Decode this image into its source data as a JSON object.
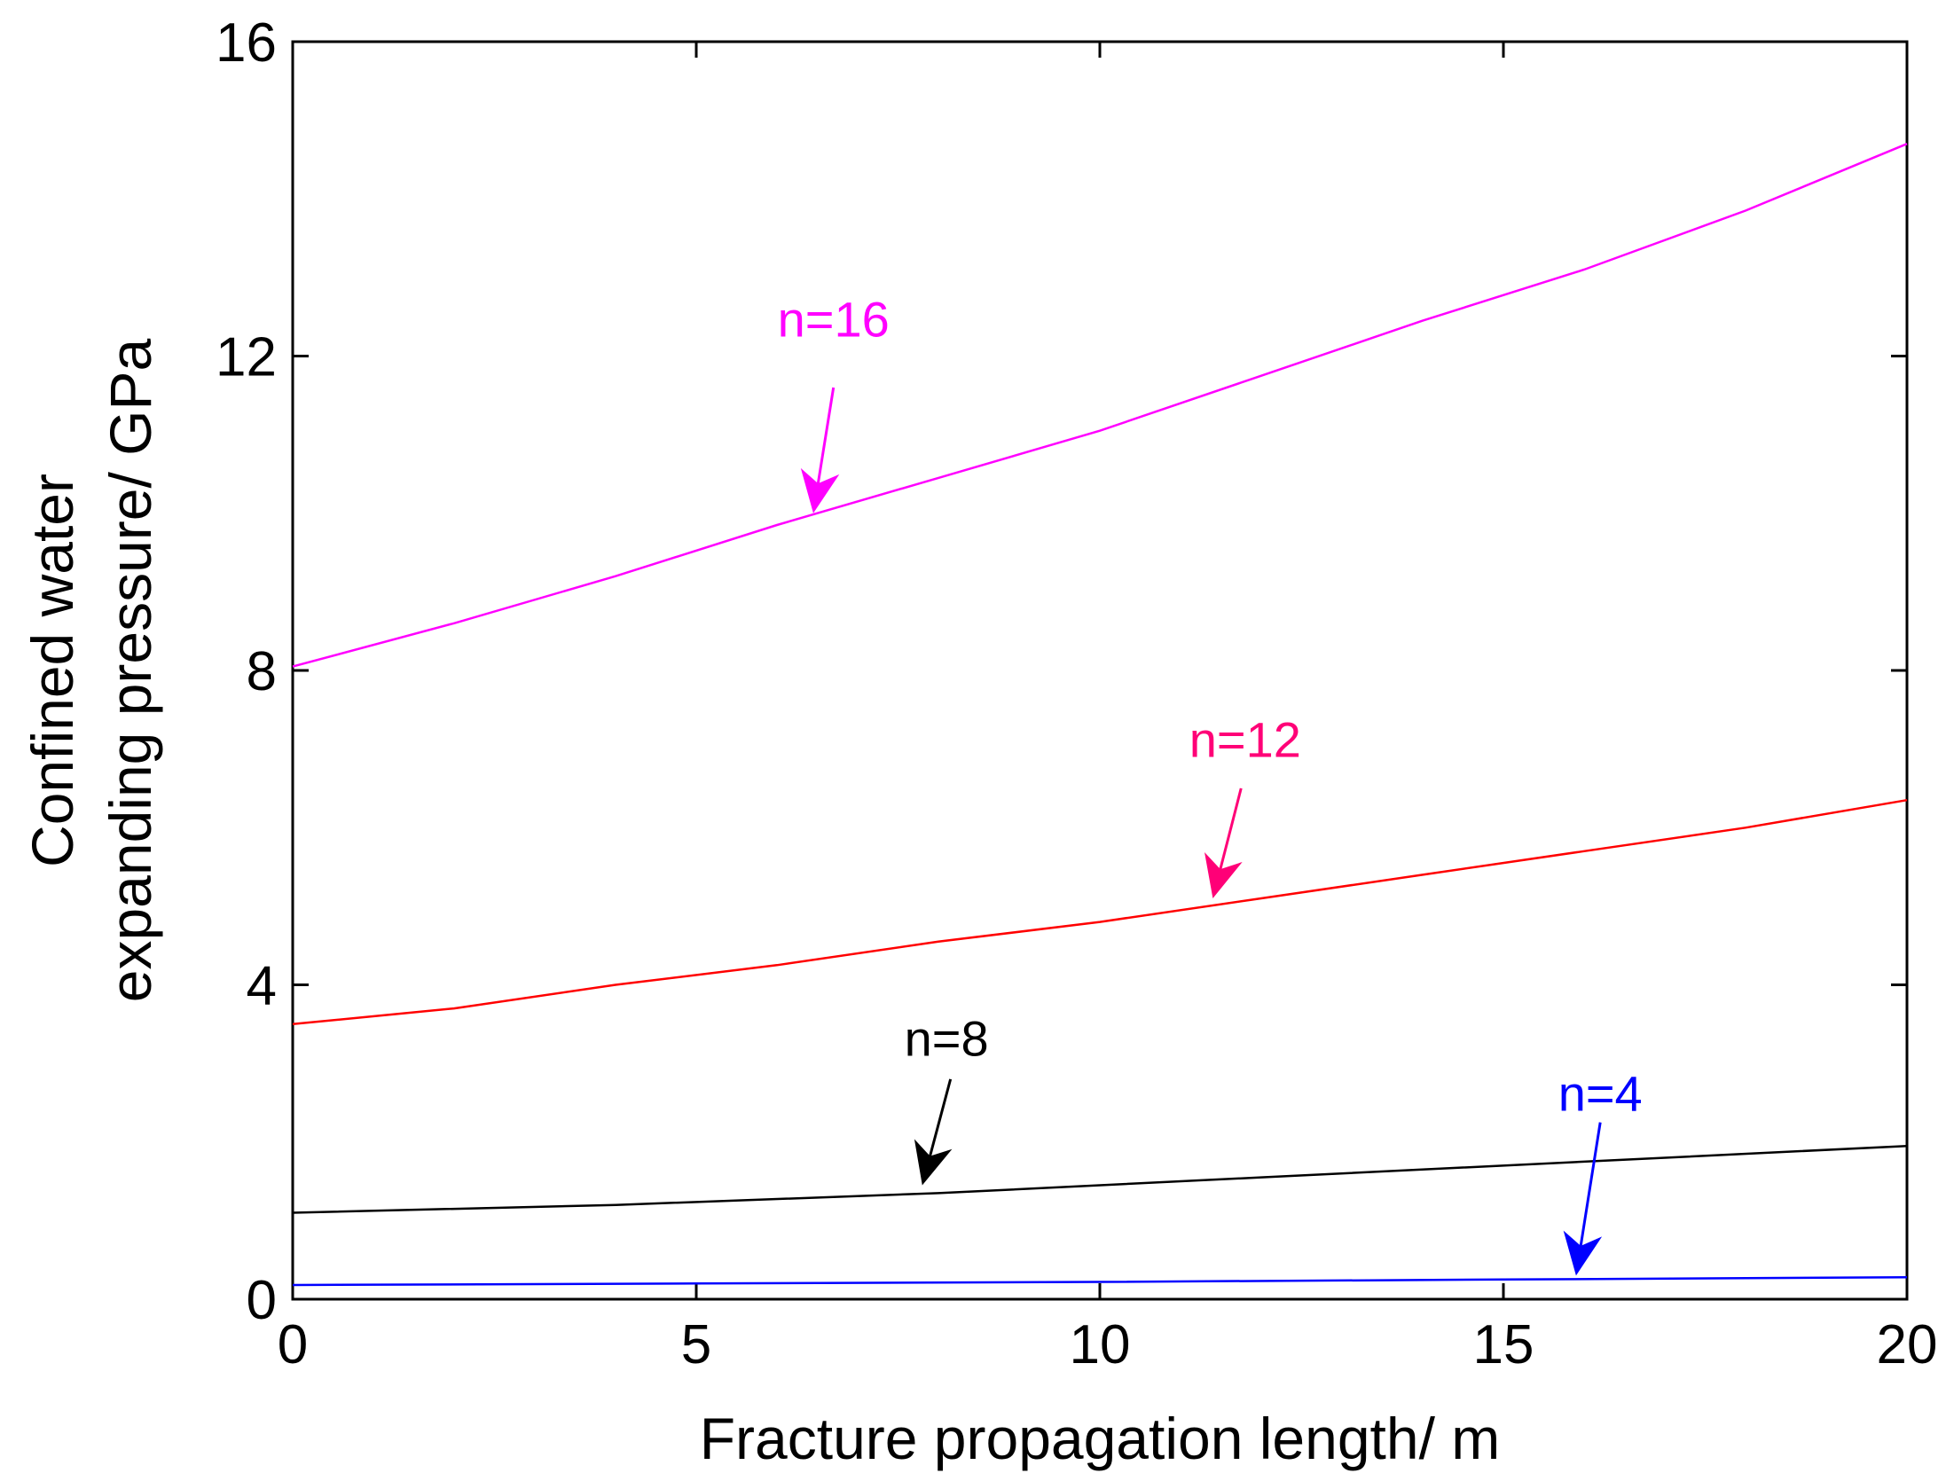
{
  "chart_data": {
    "type": "line",
    "title": "",
    "xlabel": "Fracture propagation length/ m",
    "ylabel_lines": [
      "Confined water",
      "expanding pressure/ GPa"
    ],
    "xlim": [
      0,
      20
    ],
    "ylim": [
      0,
      16
    ],
    "xticks": [
      0,
      5,
      10,
      15,
      20
    ],
    "yticks": [
      0,
      4,
      8,
      12,
      16
    ],
    "xtick_labels": [
      "0",
      "5",
      "10",
      "15",
      "20"
    ],
    "ytick_labels": [
      "0",
      "4",
      "8",
      "12",
      "16"
    ],
    "grid": false,
    "series": [
      {
        "name": "n=16",
        "color": "#ff00ff",
        "x": [
          0,
          2,
          4,
          6,
          8,
          10,
          12,
          14,
          16,
          18,
          20
        ],
        "y": [
          8.05,
          8.6,
          9.2,
          9.85,
          10.45,
          11.05,
          11.75,
          12.45,
          13.1,
          13.85,
          14.7
        ]
      },
      {
        "name": "n=12",
        "color": "#ff0000",
        "x": [
          0,
          2,
          4,
          6,
          8,
          10,
          12,
          14,
          16,
          18,
          20
        ],
        "y": [
          3.5,
          3.7,
          4.0,
          4.25,
          4.55,
          4.8,
          5.1,
          5.4,
          5.7,
          6.0,
          6.35
        ]
      },
      {
        "name": "n=8",
        "color": "#000000",
        "x": [
          0,
          4,
          8,
          12,
          16,
          20
        ],
        "y": [
          1.1,
          1.2,
          1.35,
          1.55,
          1.75,
          1.95
        ]
      },
      {
        "name": "n=4",
        "color": "#0000ff",
        "x": [
          0,
          5,
          10,
          15,
          20
        ],
        "y": [
          0.18,
          0.2,
          0.22,
          0.25,
          0.28
        ]
      }
    ],
    "annotations": [
      {
        "text": "n=16",
        "color": "#ff00ff",
        "label_x": 6.7,
        "label_y": 12.25,
        "tail_x": 6.7,
        "tail_y": 11.6,
        "head_x": 6.45,
        "head_y": 10.0
      },
      {
        "text": "n=12",
        "color": "#ff0077",
        "label_x": 11.8,
        "label_y": 6.9,
        "tail_x": 11.75,
        "tail_y": 6.5,
        "head_x": 11.4,
        "head_y": 5.1
      },
      {
        "text": "n=8",
        "color": "#000000",
        "label_x": 8.1,
        "label_y": 3.1,
        "tail_x": 8.15,
        "tail_y": 2.8,
        "head_x": 7.8,
        "head_y": 1.45
      },
      {
        "text": "n=4",
        "color": "#0000ff",
        "label_x": 16.2,
        "label_y": 2.4,
        "tail_x": 16.2,
        "tail_y": 2.25,
        "head_x": 15.9,
        "head_y": 0.3
      }
    ]
  }
}
